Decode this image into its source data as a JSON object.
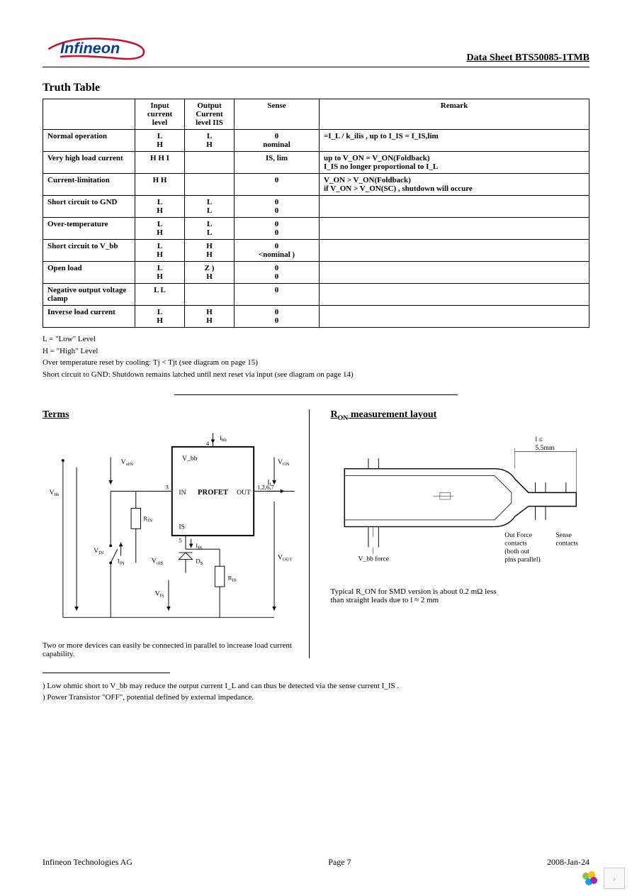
{
  "header": {
    "doc_title": "Data Sheet BTS50085-1TMB",
    "logo_text": "Infineon",
    "logo_colors": {
      "text": "#0a3f8a",
      "swoosh": "#c8102e"
    }
  },
  "section1_title": "Truth Table",
  "truth_table": {
    "headers": {
      "condition": "",
      "input": "Input current level",
      "output": "Output Current level IIS",
      "sense": "Sense",
      "remark": "Remark"
    },
    "rows": [
      {
        "cond": "Normal operation",
        "in": "L\nH",
        "out": "L\nH",
        "sense": "0\nnominal",
        "remark": "=I_L / k_ilis , up to I_IS = I_IS,lim"
      },
      {
        "cond": "Very high load current",
        "in": "H H I",
        "out": "",
        "sense": "IS, lim",
        "remark": "up to V_ON = V_ON(Foldback)\nI_IS no longer proportional to I_L"
      },
      {
        "cond": "Current-limitation",
        "in": "H H",
        "out": "",
        "sense": "0",
        "remark": "V_ON > V_ON(Foldback)\nif V_ON > V_ON(SC) , shutdown will occure"
      },
      {
        "cond": "Short circuit to GND",
        "in": "L\nH",
        "out": "L\nL",
        "sense": "0\n0",
        "remark": ""
      },
      {
        "cond": "Over-temperature",
        "in": "L\nH",
        "out": "L\nL",
        "sense": "0\n0",
        "remark": ""
      },
      {
        "cond": "Short circuit to V_bb",
        "in": "L\nH",
        "out": "H\nH",
        "sense": "0\n<nominal   )",
        "remark": ""
      },
      {
        "cond": "Open load",
        "in": "L\nH",
        "out": "Z )\nH",
        "sense": "0\n0",
        "remark": ""
      },
      {
        "cond": "Negative output voltage clamp",
        "in": "L L",
        "out": "",
        "sense": "0",
        "remark": ""
      },
      {
        "cond": "Inverse load current",
        "in": "L\nH",
        "out": "H\nH",
        "sense": "0\n0",
        "remark": ""
      }
    ]
  },
  "notes": [
    "L = \"Low\" Level",
    "H = \"High\" Level",
    "Over temperature reset by cooling: Tj < Tjt (see diagram on page 15)",
    "Short circuit to GND: Shutdown remains latched until next reset via input (see diagram on page 14)"
  ],
  "terms": {
    "title": "Terms",
    "labels": {
      "vbb": "V_bb",
      "vin": "V_IN",
      "von": "V_ON",
      "vout": "V_OUT",
      "vis": "V_IS",
      "vuin": "V_uIN",
      "vuis": "V_uIS",
      "iin": "I_IN",
      "ibb": "I_bb",
      "il": "I_L",
      "iis": "I_IS",
      "rin": "R_IN",
      "ris": "R_IS",
      "ds": "D_S",
      "in_pin": "IN",
      "is_pin": "IS",
      "out_pin": "OUT",
      "vbb_pin": "V_bb",
      "block": "PROFET",
      "pin3": "3",
      "pin4": "4",
      "pin5": "5",
      "pins_out": "1,2,6,7"
    },
    "caption": "Two or more devices can easily be connected in parallel to increase load current capability."
  },
  "ron": {
    "title": "R_ON measurement layout",
    "labels": {
      "l_le": "l ≤",
      "dim": "5.5mm",
      "vbb_force": "V_bb force",
      "out_force": "Out Force contacts (both out pins parallel)",
      "sense": "Sense contacts"
    },
    "caption_line1": "Typical R_ON for SMD version is about 0.2 mΩ less",
    "caption_line2": "than straight leads due to l ≈ 2 mm"
  },
  "footnotes": [
    ") Low ohmic short to V_bb may reduce the output current I_L and can thus be detected via the sense current I_IS .",
    ") Power Transistor \"OFF\", potential defined by external impedance."
  ],
  "footer": {
    "company": "Infineon Technologies AG",
    "page": "Page 7",
    "date": "2008-Jan-24"
  }
}
